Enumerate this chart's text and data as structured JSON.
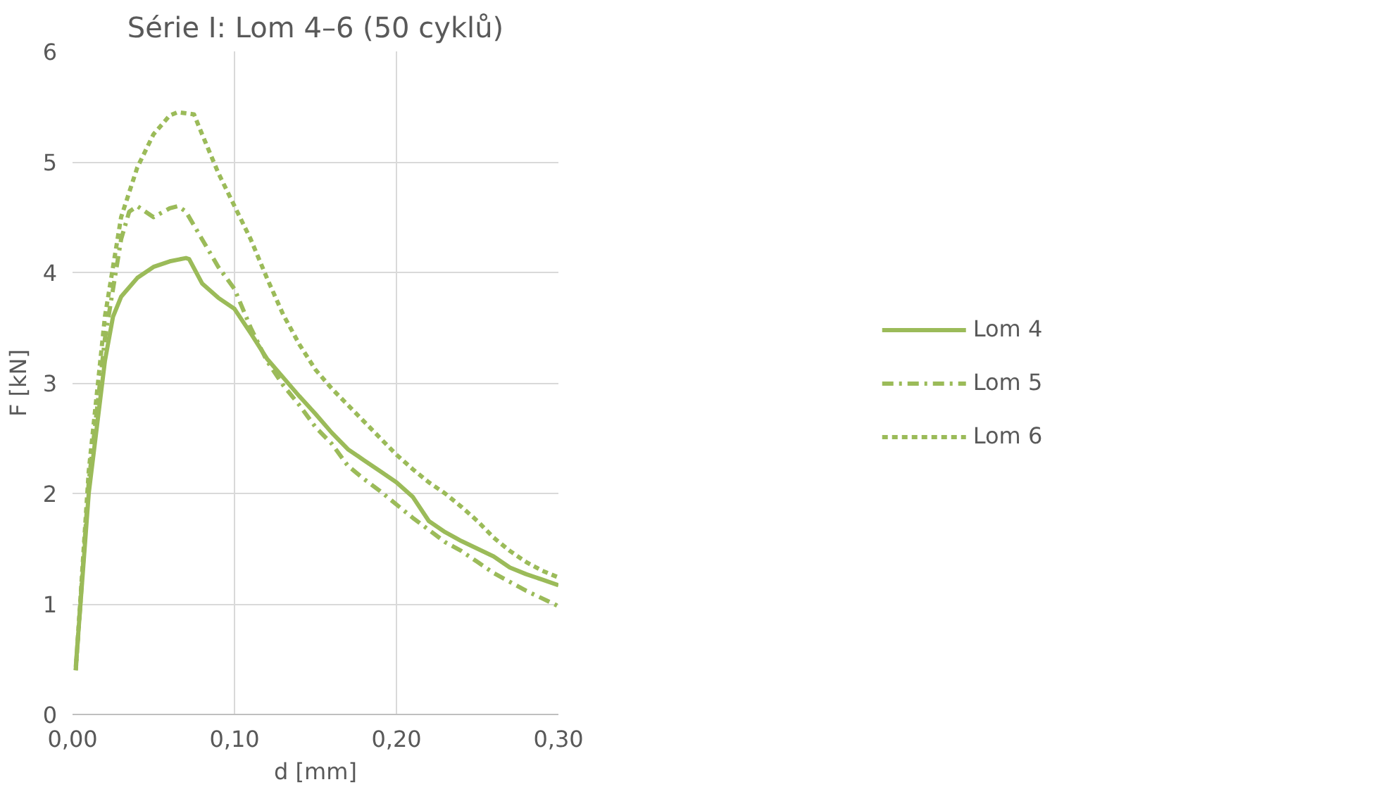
{
  "chart_data": {
    "type": "line",
    "title": "Série I: Lom 4–6 (50 cyklů)",
    "xlabel": "d [mm]",
    "ylabel": "F [kN]",
    "xlim": [
      0,
      0.3
    ],
    "xticks": [
      {
        "value": 0,
        "label": "0,00"
      },
      {
        "value": 0.1,
        "label": "0,10"
      },
      {
        "value": 0.2,
        "label": "0,20"
      },
      {
        "value": 0.3,
        "label": "0,30"
      }
    ],
    "ylim": [
      0,
      6
    ],
    "yticks": [
      0,
      1,
      2,
      3,
      4,
      5,
      6
    ],
    "grid": true,
    "legend": "right",
    "marker": "none",
    "series": [
      {
        "name": "Lom 4",
        "color": "#9bbb59",
        "line_style": "solid",
        "x": [
          0.002,
          0.01,
          0.02,
          0.025,
          0.03,
          0.04,
          0.05,
          0.06,
          0.07,
          0.072,
          0.08,
          0.09,
          0.1,
          0.11,
          0.12,
          0.13,
          0.14,
          0.15,
          0.16,
          0.17,
          0.18,
          0.19,
          0.2,
          0.21,
          0.22,
          0.23,
          0.24,
          0.25,
          0.26,
          0.27,
          0.28,
          0.29,
          0.3
        ],
        "values": [
          0.43,
          2.0,
          3.2,
          3.6,
          3.78,
          3.95,
          4.05,
          4.1,
          4.13,
          4.12,
          3.9,
          3.77,
          3.67,
          3.45,
          3.22,
          3.05,
          2.88,
          2.72,
          2.55,
          2.4,
          2.3,
          2.2,
          2.1,
          1.97,
          1.75,
          1.65,
          1.57,
          1.5,
          1.43,
          1.33,
          1.27,
          1.22,
          1.17
        ]
      },
      {
        "name": "Lom 5",
        "color": "#9bbb59",
        "line_style": "dashdot",
        "x": [
          0.002,
          0.01,
          0.02,
          0.03,
          0.035,
          0.04,
          0.05,
          0.06,
          0.065,
          0.07,
          0.08,
          0.09,
          0.1,
          0.11,
          0.12,
          0.13,
          0.14,
          0.15,
          0.16,
          0.17,
          0.18,
          0.19,
          0.2,
          0.21,
          0.22,
          0.23,
          0.24,
          0.25,
          0.26,
          0.27,
          0.28,
          0.29,
          0.3
        ],
        "values": [
          0.4,
          2.1,
          3.4,
          4.3,
          4.55,
          4.6,
          4.5,
          4.58,
          4.6,
          4.55,
          4.3,
          4.05,
          3.85,
          3.5,
          3.2,
          2.98,
          2.8,
          2.6,
          2.45,
          2.25,
          2.13,
          2.02,
          1.9,
          1.78,
          1.67,
          1.56,
          1.48,
          1.38,
          1.28,
          1.2,
          1.12,
          1.05,
          0.98
        ]
      },
      {
        "name": "Lom 6",
        "color": "#9bbb59",
        "line_style": "dashed",
        "x": [
          0.002,
          0.01,
          0.02,
          0.03,
          0.04,
          0.05,
          0.06,
          0.065,
          0.075,
          0.08,
          0.09,
          0.1,
          0.11,
          0.12,
          0.13,
          0.14,
          0.15,
          0.16,
          0.17,
          0.18,
          0.19,
          0.2,
          0.21,
          0.22,
          0.23,
          0.24,
          0.25,
          0.26,
          0.27,
          0.28,
          0.29,
          0.3
        ],
        "values": [
          0.4,
          2.2,
          3.6,
          4.5,
          4.95,
          5.25,
          5.42,
          5.45,
          5.43,
          5.25,
          4.9,
          4.6,
          4.3,
          3.95,
          3.62,
          3.35,
          3.12,
          2.95,
          2.8,
          2.65,
          2.5,
          2.35,
          2.22,
          2.1,
          2.0,
          1.88,
          1.75,
          1.6,
          1.48,
          1.38,
          1.3,
          1.24
        ]
      }
    ]
  }
}
